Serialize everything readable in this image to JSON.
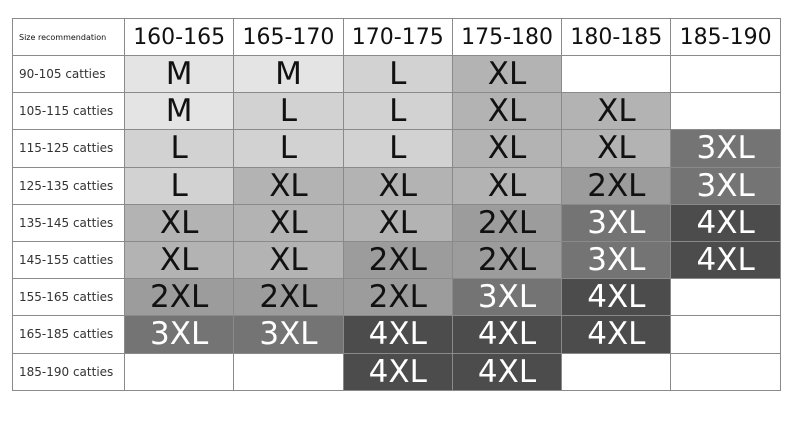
{
  "table": {
    "header": [
      "Size recommendation",
      "160-165",
      "165-170",
      "170-175",
      "175-180",
      "180-185",
      "185-190"
    ],
    "rows": [
      [
        "90-105 catties",
        "M",
        "M",
        "L",
        "XL",
        null,
        null
      ],
      [
        "105-115 catties",
        "M",
        "L",
        "L",
        "XL",
        "XL",
        null
      ],
      [
        "115-125 catties",
        "L",
        "L",
        "L",
        "XL",
        "XL",
        "3XL"
      ],
      [
        "125-135 catties",
        "L",
        "XL",
        "XL",
        "XL",
        "2XL",
        "3XL"
      ],
      [
        "135-145 catties",
        "XL",
        "XL",
        "XL",
        "2XL",
        "3XL",
        "4XL"
      ],
      [
        "145-155 catties",
        "XL",
        "XL",
        "2XL",
        "2XL",
        "3XL",
        "4XL"
      ],
      [
        "155-165 catties",
        "2XL",
        "2XL",
        "2XL",
        "3XL",
        "4XL",
        null
      ],
      [
        "165-185 catties",
        "3XL",
        "3XL",
        "4XL",
        "4XL",
        "4XL",
        null
      ],
      [
        "185-190 catties",
        null,
        null,
        "4XL",
        "4XL",
        null,
        null
      ]
    ]
  }
}
